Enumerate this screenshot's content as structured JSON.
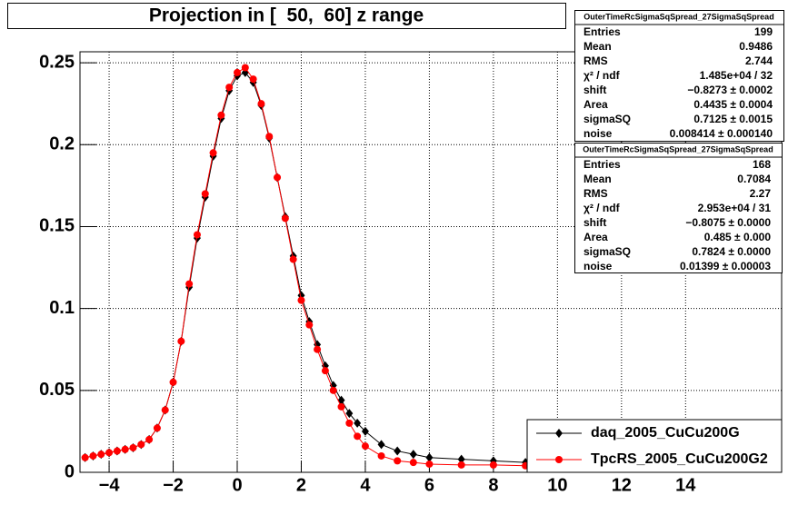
{
  "chart_data": {
    "type": "line",
    "title": "Projection in [  50,  60] z range",
    "x": [
      -4.75,
      -4.5,
      -4.25,
      -4.0,
      -3.75,
      -3.5,
      -3.25,
      -3.0,
      -2.75,
      -2.5,
      -2.25,
      -2.0,
      -1.75,
      -1.5,
      -1.25,
      -1.0,
      -0.75,
      -0.5,
      -0.25,
      0.0,
      0.25,
      0.5,
      0.75,
      1.0,
      1.25,
      1.5,
      1.75,
      2.0,
      2.25,
      2.5,
      2.75,
      3.0,
      3.25,
      3.5,
      3.75,
      4.0,
      4.5,
      5.0,
      5.5,
      6.0,
      7.0,
      8.0,
      9.0
    ],
    "series": [
      {
        "name": "daq_2005_CuCu200G",
        "color": "#000000",
        "marker": "diamond",
        "values": [
          0.009,
          0.01,
          0.011,
          0.012,
          0.013,
          0.014,
          0.015,
          0.017,
          0.02,
          0.027,
          0.038,
          0.055,
          0.08,
          0.113,
          0.143,
          0.168,
          0.193,
          0.216,
          0.233,
          0.242,
          0.244,
          0.238,
          0.224,
          0.204,
          0.18,
          0.156,
          0.132,
          0.108,
          0.092,
          0.078,
          0.065,
          0.053,
          0.044,
          0.036,
          0.03,
          0.025,
          0.017,
          0.013,
          0.011,
          0.009,
          0.008,
          0.007,
          0.006
        ]
      },
      {
        "name": "TpcRS_2005_CuCu200G2",
        "color": "#ff0000",
        "marker": "circle",
        "values": [
          0.009,
          0.01,
          0.011,
          0.012,
          0.013,
          0.014,
          0.015,
          0.017,
          0.02,
          0.027,
          0.038,
          0.055,
          0.08,
          0.115,
          0.145,
          0.17,
          0.195,
          0.218,
          0.235,
          0.244,
          0.247,
          0.24,
          0.225,
          0.205,
          0.18,
          0.155,
          0.13,
          0.105,
          0.09,
          0.075,
          0.062,
          0.05,
          0.04,
          0.03,
          0.022,
          0.016,
          0.01,
          0.007,
          0.006,
          0.005,
          0.0045,
          0.0045,
          0.004
        ]
      }
    ],
    "xlim": [
      -4.91,
      17.0
    ],
    "ylim": [
      0,
      0.2567
    ],
    "xticks": [
      {
        "value": -4,
        "label": "−4"
      },
      {
        "value": -2,
        "label": "−2"
      },
      0,
      2,
      4,
      6,
      8,
      10,
      12,
      14
    ],
    "yticks": [
      0,
      0.05,
      0.1,
      0.15,
      0.2,
      0.25
    ],
    "grid": true,
    "legend_position": "bottom-right",
    "stats_boxes": [
      {
        "title": "OuterTimeRcSigmaSqSpread_27SigmaSqSpread",
        "rows": [
          [
            "Entries",
            "199"
          ],
          [
            "Mean",
            "0.9486"
          ],
          [
            "RMS",
            "2.744"
          ],
          [
            "χ² / ndf",
            "1.485e+04 / 32"
          ],
          [
            "shift",
            "−0.8273 ± 0.0002"
          ],
          [
            "Area",
            "0.4435 ± 0.0004"
          ],
          [
            "sigmaSQ",
            "0.7125 ± 0.0015"
          ],
          [
            "noise",
            "0.008414 ± 0.000140"
          ]
        ]
      },
      {
        "title": "OuterTimeRcSigmaSqSpread_27SigmaSqSpread",
        "rows": [
          [
            "Entries",
            "168"
          ],
          [
            "Mean",
            "0.7084"
          ],
          [
            "RMS",
            "2.27"
          ],
          [
            "χ² / ndf",
            "2.953e+04 / 31"
          ],
          [
            "shift",
            "−0.8075 ± 0.0000"
          ],
          [
            "Area",
            "0.485 ± 0.000"
          ],
          [
            "sigmaSQ",
            "0.7824 ± 0.0000"
          ],
          [
            "noise",
            "0.01399 ± 0.00003"
          ]
        ]
      }
    ]
  }
}
